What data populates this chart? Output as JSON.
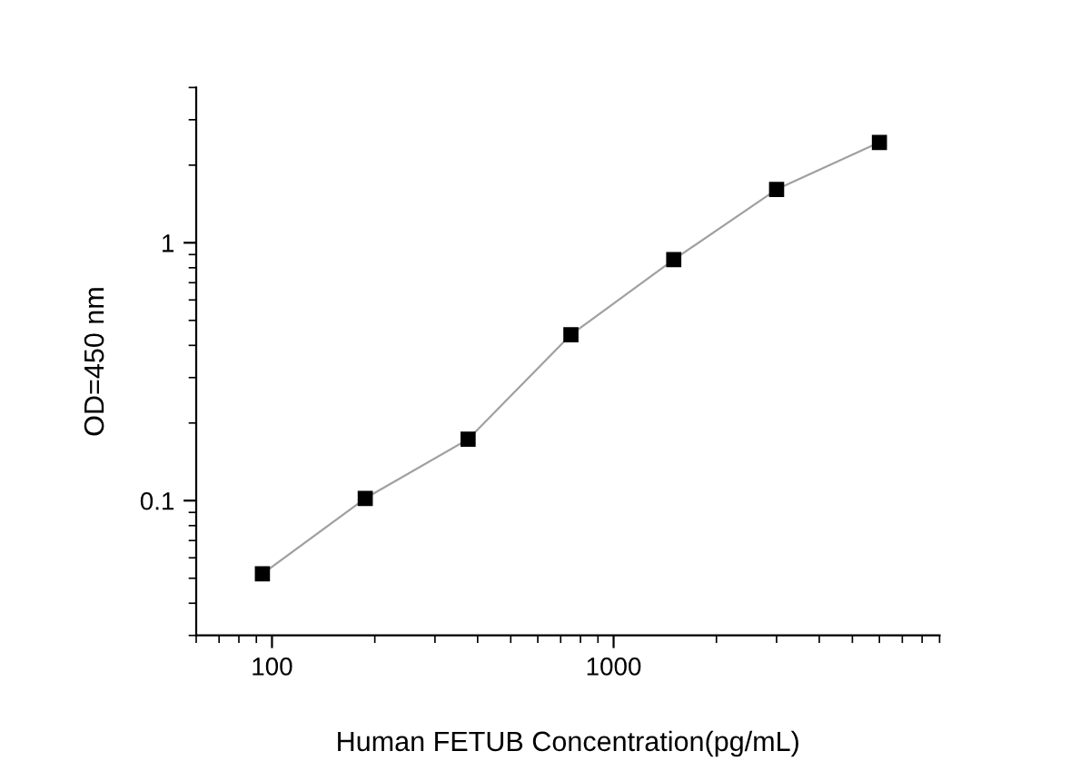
{
  "chart_data": {
    "type": "line",
    "xlabel": "Human FETUB Concentration(pg/mL)",
    "ylabel": "OD=450 nm",
    "x": [
      93.75,
      187.5,
      375,
      750,
      1500,
      3000,
      6000
    ],
    "series": [
      {
        "color": "#000000",
        "values": [
          0.052,
          0.102,
          0.173,
          0.44,
          0.86,
          1.61,
          2.45
        ]
      }
    ],
    "log": "xy",
    "xlim": [
      60,
      9000
    ],
    "ylim": [
      0.03,
      4
    ],
    "xticks": [
      100,
      1000
    ],
    "yticks": [
      0.1,
      1
    ],
    "marker": "square",
    "grid": false
  }
}
